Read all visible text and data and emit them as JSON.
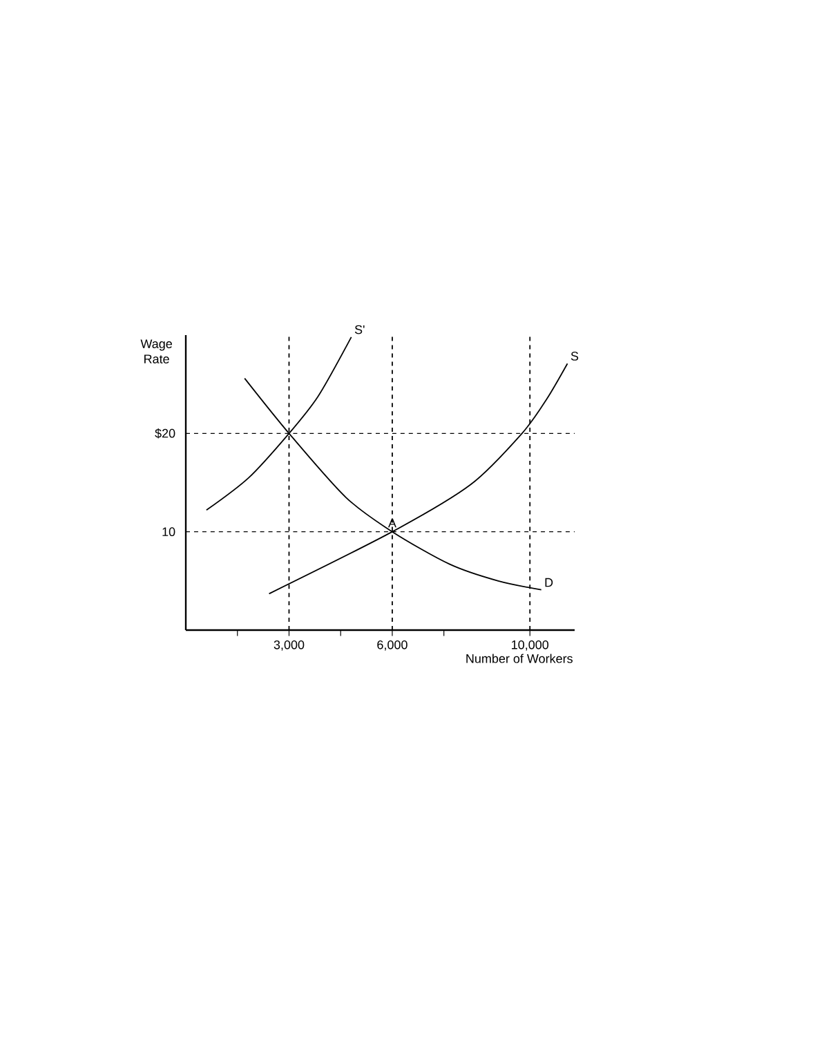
{
  "chart_data": {
    "type": "line",
    "xlabel": "Number of Workers",
    "ylabel": "Wage Rate",
    "xlim": [
      0,
      11300
    ],
    "ylim": [
      0,
      30
    ],
    "xticks": [
      {
        "value": 1500,
        "label": null
      },
      {
        "value": 3000,
        "label": "3,000"
      },
      {
        "value": 4500,
        "label": null
      },
      {
        "value": 6000,
        "label": "6,000"
      },
      {
        "value": 7500,
        "label": null
      },
      {
        "value": 10000,
        "label": "10,000"
      }
    ],
    "yticks": [
      {
        "value": 10,
        "label": "10"
      },
      {
        "value": 20,
        "label": "$20"
      }
    ],
    "series": [
      {
        "name": "S'",
        "color": "#000000",
        "x": [
          600,
          1830,
          3000,
          3850,
          4810
        ],
        "values": [
          12.2,
          15.5,
          20,
          23.8,
          29.8
        ]
      },
      {
        "name": "D",
        "color": "#000000",
        "x": [
          1710,
          3000,
          4650,
          6000,
          7670,
          9080,
          10330
        ],
        "values": [
          25.6,
          20,
          13.5,
          10,
          6.7,
          5.0,
          4.1
        ]
      },
      {
        "name": "S",
        "color": "#000000",
        "x": [
          2420,
          6000,
          8280,
          9770,
          10490,
          11090
        ],
        "values": [
          3.7,
          10,
          14.8,
          20,
          23.5,
          27.1
        ]
      }
    ],
    "ref_lines": [
      {
        "axis": "y",
        "value": 20,
        "line_style": "dashed"
      },
      {
        "axis": "y",
        "value": 10,
        "line_style": "dashed"
      },
      {
        "axis": "x",
        "value": 3000,
        "line_style": "dashed"
      },
      {
        "axis": "x",
        "value": 6000,
        "line_style": "dashed"
      },
      {
        "axis": "x",
        "value": 10000,
        "line_style": "dashed"
      }
    ],
    "annotations": [
      {
        "text": "A",
        "x": 6000,
        "y": 10
      }
    ]
  }
}
